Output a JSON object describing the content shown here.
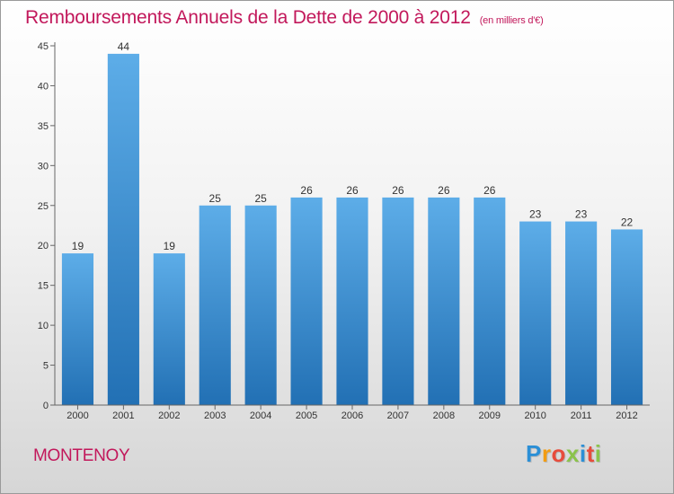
{
  "title": "Remboursements Annuels de la Dette de 2000 à 2012",
  "subtitle": "(en milliers d'€)",
  "commune": "MONTENOY",
  "brand": {
    "letters": [
      "P",
      "r",
      "o",
      "x",
      "i",
      "t",
      "i"
    ],
    "colors": [
      "#2b8fd6",
      "#f39c12",
      "#e74c3c",
      "#8bc34a",
      "#2b8fd6",
      "#e74c3c",
      "#8bc34a"
    ]
  },
  "colors": {
    "title": "#c2185b",
    "bar_light": "#5dade8",
    "bar_dark": "#2270b4"
  },
  "chart_data": {
    "type": "bar",
    "categories": [
      "2000",
      "2001",
      "2002",
      "2003",
      "2004",
      "2005",
      "2006",
      "2007",
      "2008",
      "2009",
      "2010",
      "2011",
      "2012"
    ],
    "values": [
      19,
      44,
      19,
      25,
      25,
      26,
      26,
      26,
      26,
      26,
      23,
      23,
      22
    ],
    "ylim": [
      0,
      45
    ],
    "yticks": [
      0,
      5,
      10,
      15,
      20,
      25,
      30,
      35,
      40,
      45
    ],
    "grid": false,
    "data_labels": true
  }
}
